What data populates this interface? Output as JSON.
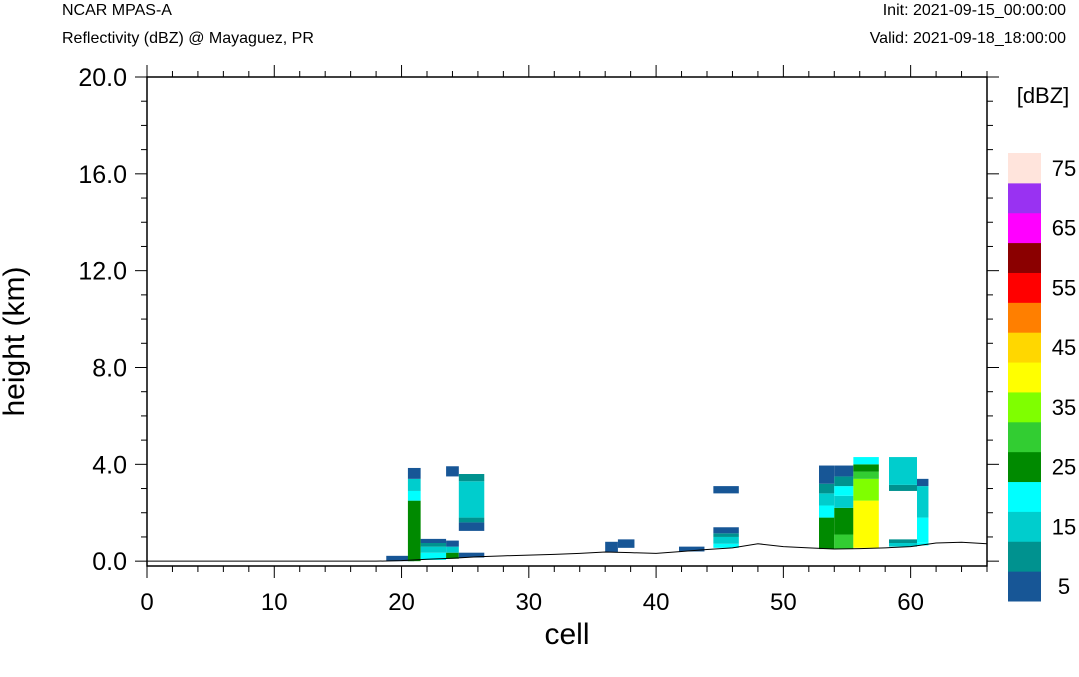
{
  "header": {
    "left_line1": "NCAR MPAS-A",
    "left_line2": "Reflectivity (dBZ) @ Mayaguez, PR",
    "right_line1": "Init: 2021-09-15_00:00:00",
    "right_line2": "Valid: 2021-09-18_18:00:00"
  },
  "chart_data": {
    "type": "heatmap",
    "title": "Reflectivity (dBZ) @ Mayaguez, PR",
    "xlabel": "cell",
    "ylabel": "height (km)",
    "xlim": [
      0,
      66
    ],
    "ylim": [
      -0.2,
      20
    ],
    "x_ticks": [
      0,
      10,
      20,
      30,
      40,
      50,
      60
    ],
    "x_tick_labels": [
      "0",
      "10",
      "20",
      "30",
      "40",
      "50",
      "60"
    ],
    "y_ticks": [
      0,
      4,
      8,
      12,
      16,
      20
    ],
    "y_tick_labels": [
      "0.0",
      "4.0",
      "8.0",
      "12.0",
      "16.0",
      "20.0"
    ],
    "colorbar": {
      "title": "[dBZ]",
      "levels": [
        5,
        10,
        15,
        20,
        25,
        30,
        35,
        40,
        45,
        50,
        55,
        60,
        65,
        70,
        75
      ],
      "tick_labels": [
        "5",
        "15",
        "25",
        "35",
        "45",
        "55",
        "65",
        "75"
      ],
      "colors": [
        "#175696",
        "#00928f",
        "#00cdcd",
        "#00ffff",
        "#008a00",
        "#32cd32",
        "#7fff00",
        "#ffff00",
        "#ffd700",
        "#ff7f00",
        "#ff0000",
        "#8b0000",
        "#ff00ff",
        "#9932f2",
        "#ffe4dc"
      ]
    },
    "terrain": [
      [
        0,
        0
      ],
      [
        18,
        0
      ],
      [
        20,
        0.02
      ],
      [
        22,
        0.08
      ],
      [
        24,
        0.12
      ],
      [
        26,
        0.18
      ],
      [
        28,
        0.22
      ],
      [
        30,
        0.25
      ],
      [
        32,
        0.28
      ],
      [
        34,
        0.32
      ],
      [
        36,
        0.38
      ],
      [
        38,
        0.35
      ],
      [
        40,
        0.32
      ],
      [
        42,
        0.4
      ],
      [
        44,
        0.48
      ],
      [
        46,
        0.55
      ],
      [
        48,
        0.72
      ],
      [
        50,
        0.6
      ],
      [
        52,
        0.55
      ],
      [
        54,
        0.5
      ],
      [
        56,
        0.52
      ],
      [
        58,
        0.55
      ],
      [
        60,
        0.6
      ],
      [
        62,
        0.75
      ],
      [
        64,
        0.78
      ],
      [
        66,
        0.72
      ]
    ],
    "cells": [
      {
        "x": [
          18.8,
          21
        ],
        "bands": [
          {
            "z": [
              0,
              0.22
            ],
            "dbz": 5
          }
        ]
      },
      {
        "x": [
          20.5,
          21.5
        ],
        "bands": [
          {
            "z": [
              0,
              2.5
            ],
            "dbz": 25
          },
          {
            "z": [
              2.5,
              2.9
            ],
            "dbz": 20
          },
          {
            "z": [
              2.9,
              3.4
            ],
            "dbz": 15
          },
          {
            "z": [
              3.4,
              3.85
            ],
            "dbz": 5
          }
        ]
      },
      {
        "x": [
          21.5,
          23.5
        ],
        "bands": [
          {
            "z": [
              0.05,
              0.35
            ],
            "dbz": 20
          },
          {
            "z": [
              0.35,
              0.6
            ],
            "dbz": 15
          },
          {
            "z": [
              0.6,
              0.75
            ],
            "dbz": 10
          },
          {
            "z": [
              0.75,
              0.92
            ],
            "dbz": 5
          }
        ]
      },
      {
        "x": [
          23.5,
          24.5
        ],
        "bands": [
          {
            "z": [
              0.1,
              0.35
            ],
            "dbz": 25
          },
          {
            "z": [
              0.35,
              0.6
            ],
            "dbz": 15
          },
          {
            "z": [
              0.6,
              0.85
            ],
            "dbz": 5
          },
          {
            "z": [
              3.5,
              3.92
            ],
            "dbz": 5
          }
        ]
      },
      {
        "x": [
          24.5,
          26.5
        ],
        "bands": [
          {
            "z": [
              0.15,
              0.35
            ],
            "dbz": 5
          },
          {
            "z": [
              1.25,
              1.6
            ],
            "dbz": 5
          },
          {
            "z": [
              1.6,
              1.8
            ],
            "dbz": 10
          },
          {
            "z": [
              1.8,
              3.3
            ],
            "dbz": 15
          },
          {
            "z": [
              3.3,
              3.6
            ],
            "dbz": 10
          }
        ]
      },
      {
        "x": [
          36,
          37
        ],
        "bands": [
          {
            "z": [
              0.38,
              0.8
            ],
            "dbz": 5
          }
        ]
      },
      {
        "x": [
          37,
          38.3
        ],
        "bands": [
          {
            "z": [
              0.55,
              0.9
            ],
            "dbz": 5
          }
        ]
      },
      {
        "x": [
          41.8,
          43.8
        ],
        "bands": [
          {
            "z": [
              0.4,
              0.6
            ],
            "dbz": 5
          }
        ]
      },
      {
        "x": [
          44.5,
          46.5
        ],
        "bands": [
          {
            "z": [
              0.55,
              0.72
            ],
            "dbz": 20
          },
          {
            "z": [
              0.72,
              1.0
            ],
            "dbz": 15
          },
          {
            "z": [
              1.0,
              1.15
            ],
            "dbz": 10
          },
          {
            "z": [
              1.15,
              1.4
            ],
            "dbz": 5
          },
          {
            "z": [
              2.8,
              3.1
            ],
            "dbz": 5
          }
        ]
      },
      {
        "x": [
          52.8,
          54
        ],
        "bands": [
          {
            "z": [
              0.5,
              1.8
            ],
            "dbz": 25
          },
          {
            "z": [
              1.8,
              2.3
            ],
            "dbz": 20
          },
          {
            "z": [
              2.3,
              2.8
            ],
            "dbz": 15
          },
          {
            "z": [
              2.8,
              3.2
            ],
            "dbz": 10
          },
          {
            "z": [
              3.2,
              3.95
            ],
            "dbz": 5
          }
        ]
      },
      {
        "x": [
          54,
          55.5
        ],
        "bands": [
          {
            "z": [
              0.5,
              1.1
            ],
            "dbz": 30
          },
          {
            "z": [
              1.1,
              2.2
            ],
            "dbz": 25
          },
          {
            "z": [
              2.2,
              2.7
            ],
            "dbz": 15
          },
          {
            "z": [
              2.7,
              3.1
            ],
            "dbz": 20
          },
          {
            "z": [
              3.1,
              3.5
            ],
            "dbz": 10
          },
          {
            "z": [
              3.5,
              3.95
            ],
            "dbz": 5
          }
        ]
      },
      {
        "x": [
          55.5,
          57.5
        ],
        "bands": [
          {
            "z": [
              0.55,
              2.5
            ],
            "dbz": 40
          },
          {
            "z": [
              2.5,
              3.4
            ],
            "dbz": 35
          },
          {
            "z": [
              3.4,
              3.7
            ],
            "dbz": 30
          },
          {
            "z": [
              3.7,
              4.0
            ],
            "dbz": 25
          },
          {
            "z": [
              4.0,
              4.3
            ],
            "dbz": 20
          }
        ]
      },
      {
        "x": [
          58.3,
          60.5
        ],
        "bands": [
          {
            "z": [
              0.6,
              0.75
            ],
            "dbz": 15
          },
          {
            "z": [
              0.75,
              0.9
            ],
            "dbz": 10
          },
          {
            "z": [
              2.9,
              3.15
            ],
            "dbz": 10
          },
          {
            "z": [
              3.15,
              4.3
            ],
            "dbz": 15
          }
        ]
      },
      {
        "x": [
          60.5,
          61.4
        ],
        "bands": [
          {
            "z": [
              0.65,
              0.78
            ],
            "dbz": 20
          },
          {
            "z": [
              0.78,
              1.8
            ],
            "dbz": 20
          },
          {
            "z": [
              1.8,
              3.1
            ],
            "dbz": 15
          },
          {
            "z": [
              3.1,
              3.4
            ],
            "dbz": 5
          }
        ]
      }
    ]
  }
}
